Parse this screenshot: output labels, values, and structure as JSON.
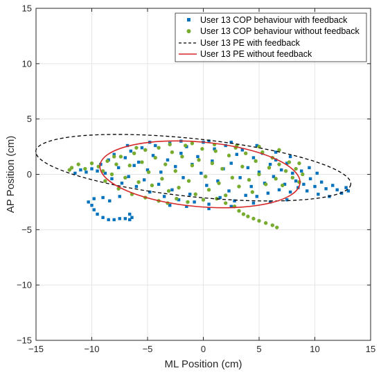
{
  "chart_data": {
    "type": "scatter",
    "title": "",
    "xlabel": "ML Position (cm)",
    "ylabel": "AP Position (cm)",
    "xlim": [
      -15,
      15
    ],
    "ylim": [
      -15,
      15
    ],
    "xticks": [
      -15,
      -10,
      -5,
      0,
      5,
      10,
      15
    ],
    "yticks": [
      -15,
      -10,
      -5,
      0,
      5,
      10,
      15
    ],
    "xtick_labels": [
      "−15",
      "−10",
      "−5",
      "0",
      "5",
      "10",
      "15"
    ],
    "ytick_labels": [
      "−15",
      "−10",
      "−5",
      "0",
      "5",
      "10",
      "15"
    ],
    "grid": true,
    "legend_position": "top-right",
    "series": [
      {
        "name": "User 13 COP behaviour with feedback",
        "kind": "scatter",
        "marker": "square",
        "color": "#0072BD",
        "points": [
          [
            -10.5,
            0.2
          ],
          [
            -10.0,
            0.5
          ],
          [
            -9.5,
            0.3
          ],
          [
            -9.2,
            0.9
          ],
          [
            -8.8,
            0.1
          ],
          [
            -8.5,
            1.3
          ],
          [
            -8.2,
            -0.4
          ],
          [
            -8.0,
            1.8
          ],
          [
            -7.6,
            0.6
          ],
          [
            -7.3,
            -0.8
          ],
          [
            -7.0,
            1.5
          ],
          [
            -6.7,
            -0.2
          ],
          [
            -6.5,
            2.1
          ],
          [
            -6.2,
            0.8
          ],
          [
            -6.0,
            -1.1
          ],
          [
            -5.8,
            1.1
          ],
          [
            -5.5,
            2.4
          ],
          [
            -5.3,
            -0.5
          ],
          [
            -5.0,
            0.4
          ],
          [
            -4.8,
            -1.6
          ],
          [
            -4.5,
            1.7
          ],
          [
            -4.3,
            2.6
          ],
          [
            -4.0,
            -0.9
          ],
          [
            -3.8,
            0.2
          ],
          [
            -3.5,
            -2.0
          ],
          [
            -3.2,
            1.3
          ],
          [
            -3.0,
            2.8
          ],
          [
            -2.8,
            -1.4
          ],
          [
            -2.5,
            0.7
          ],
          [
            -2.2,
            -2.3
          ],
          [
            -2.0,
            1.9
          ],
          [
            -1.8,
            -0.3
          ],
          [
            -1.5,
            2.5
          ],
          [
            -1.2,
            -1.8
          ],
          [
            -1.0,
            0.9
          ],
          [
            -0.8,
            -2.5
          ],
          [
            -0.5,
            1.6
          ],
          [
            -0.2,
            0.1
          ],
          [
            0.0,
            2.9
          ],
          [
            0.3,
            -1.0
          ],
          [
            0.5,
            -2.7
          ],
          [
            0.8,
            1.2
          ],
          [
            1.0,
            2.3
          ],
          [
            1.3,
            -0.6
          ],
          [
            1.5,
            -2.1
          ],
          [
            1.8,
            0.5
          ],
          [
            2.0,
            2.6
          ],
          [
            2.3,
            -1.5
          ],
          [
            2.5,
            1.0
          ],
          [
            2.8,
            -2.4
          ],
          [
            3.0,
            1.8
          ],
          [
            3.3,
            -0.3
          ],
          [
            3.5,
            2.2
          ],
          [
            3.8,
            -1.9
          ],
          [
            4.0,
            0.6
          ],
          [
            4.3,
            -1.1
          ],
          [
            4.5,
            1.5
          ],
          [
            4.8,
            -2.0
          ],
          [
            5.0,
            0.2
          ],
          [
            5.3,
            1.9
          ],
          [
            5.5,
            -0.8
          ],
          [
            5.8,
            -1.7
          ],
          [
            6.0,
            0.9
          ],
          [
            6.3,
            -0.2
          ],
          [
            6.5,
            1.3
          ],
          [
            6.8,
            -1.4
          ],
          [
            7.0,
            0.4
          ],
          [
            7.3,
            -0.9
          ],
          [
            7.5,
            1.0
          ],
          [
            7.8,
            -1.6
          ],
          [
            8.0,
            0.1
          ],
          [
            8.3,
            -0.6
          ],
          [
            8.5,
            -1.2
          ],
          [
            8.8,
            0.3
          ],
          [
            9.0,
            -0.9
          ],
          [
            9.3,
            -1.5
          ],
          [
            9.6,
            -0.4
          ],
          [
            10.0,
            -1.1
          ],
          [
            10.3,
            -1.8
          ],
          [
            10.6,
            -0.7
          ],
          [
            11.0,
            -1.3
          ],
          [
            11.3,
            -2.0
          ],
          [
            11.6,
            -1.0
          ],
          [
            12.0,
            -1.4
          ],
          [
            12.4,
            -1.7
          ],
          [
            12.8,
            -1.2
          ],
          [
            13.0,
            -1.5
          ],
          [
            -10.0,
            -2.8
          ],
          [
            -9.8,
            -3.2
          ],
          [
            -9.5,
            -3.6
          ],
          [
            -9.0,
            -3.9
          ],
          [
            -8.5,
            -4.1
          ],
          [
            -8.0,
            -4.1
          ],
          [
            -7.5,
            -4.0
          ],
          [
            -7.0,
            -4.0
          ],
          [
            -6.6,
            -4.1
          ],
          [
            -6.4,
            -3.9
          ],
          [
            -6.6,
            -3.6
          ],
          [
            -10.3,
            -2.5
          ],
          [
            -9.8,
            -2.2
          ],
          [
            -9.0,
            -2.1
          ],
          [
            -8.4,
            -2.4
          ],
          [
            -7.5,
            -2.0
          ],
          [
            -3.0,
            -2.8
          ],
          [
            -1.5,
            -2.9
          ],
          [
            0.5,
            -3.1
          ],
          [
            2.5,
            -2.9
          ],
          [
            4.5,
            -2.6
          ],
          [
            6.0,
            -2.5
          ],
          [
            7.5,
            -2.3
          ],
          [
            -2.0,
            3.0
          ],
          [
            0.5,
            3.0
          ],
          [
            2.5,
            2.9
          ],
          [
            4.8,
            2.6
          ],
          [
            6.5,
            2.0
          ],
          [
            7.8,
            1.6
          ],
          [
            -4.8,
            2.9
          ],
          [
            -11.0,
            0.4
          ],
          [
            -11.5,
            0.1
          ],
          [
            -6.8,
            2.6
          ],
          [
            10.2,
            0.1
          ],
          [
            9.5,
            0.6
          ]
        ]
      },
      {
        "name": "User 13 COP behaviour without feedback",
        "kind": "scatter",
        "marker": "circle",
        "color": "#77AC30",
        "points": [
          [
            -11.8,
            0.6
          ],
          [
            -11.2,
            0.9
          ],
          [
            -10.6,
            0.5
          ],
          [
            -10.0,
            1.0
          ],
          [
            -9.4,
            0.7
          ],
          [
            -9.0,
            0.3
          ],
          [
            -8.6,
            1.2
          ],
          [
            -8.2,
            0.0
          ],
          [
            -7.8,
            0.9
          ],
          [
            -7.4,
            1.6
          ],
          [
            -7.0,
            -0.3
          ],
          [
            -6.6,
            0.8
          ],
          [
            -6.2,
            1.9
          ],
          [
            -5.8,
            -0.7
          ],
          [
            -5.5,
            1.1
          ],
          [
            -5.2,
            2.2
          ],
          [
            -4.9,
            0.2
          ],
          [
            -4.6,
            -1.0
          ],
          [
            -4.3,
            1.5
          ],
          [
            -4.0,
            2.4
          ],
          [
            -3.7,
            -0.4
          ],
          [
            -3.4,
            0.9
          ],
          [
            -3.1,
            -1.5
          ],
          [
            -2.8,
            2.0
          ],
          [
            -2.5,
            0.3
          ],
          [
            -2.2,
            -1.2
          ],
          [
            -1.9,
            1.6
          ],
          [
            -1.6,
            2.6
          ],
          [
            -1.3,
            -0.6
          ],
          [
            -1.0,
            0.8
          ],
          [
            -0.7,
            -1.8
          ],
          [
            -0.4,
            1.3
          ],
          [
            -0.1,
            2.3
          ],
          [
            0.2,
            -0.2
          ],
          [
            0.5,
            -1.4
          ],
          [
            0.8,
            1.0
          ],
          [
            1.1,
            2.1
          ],
          [
            1.4,
            -0.8
          ],
          [
            1.7,
            0.5
          ],
          [
            2.0,
            -1.9
          ],
          [
            2.3,
            1.7
          ],
          [
            2.6,
            -0.3
          ],
          [
            2.9,
            2.4
          ],
          [
            3.2,
            -1.1
          ],
          [
            3.5,
            0.7
          ],
          [
            3.8,
            1.9
          ],
          [
            4.1,
            -0.5
          ],
          [
            4.4,
            -1.6
          ],
          [
            4.7,
            1.2
          ],
          [
            5.0,
            0.0
          ],
          [
            5.3,
            2.0
          ],
          [
            5.6,
            -0.9
          ],
          [
            5.9,
            0.6
          ],
          [
            6.2,
            1.5
          ],
          [
            6.5,
            -0.4
          ],
          [
            6.8,
            0.9
          ],
          [
            7.1,
            -1.0
          ],
          [
            7.4,
            0.3
          ],
          [
            7.7,
            1.1
          ],
          [
            8.0,
            -0.3
          ],
          [
            8.3,
            0.5
          ],
          [
            8.6,
            -0.7
          ],
          [
            8.9,
            0.0
          ],
          [
            -8.8,
            -0.6
          ],
          [
            -7.6,
            -1.3
          ],
          [
            -6.4,
            -1.8
          ],
          [
            -5.2,
            -2.1
          ],
          [
            -4.0,
            -2.4
          ],
          [
            -3.2,
            -2.6
          ],
          [
            -2.4,
            -2.2
          ],
          [
            -1.4,
            -2.5
          ],
          [
            0.0,
            -2.3
          ],
          [
            1.2,
            -2.2
          ],
          [
            2.0,
            -2.6
          ],
          [
            2.8,
            -2.9
          ],
          [
            3.2,
            -3.3
          ],
          [
            3.6,
            -3.6
          ],
          [
            4.0,
            -3.8
          ],
          [
            4.5,
            -4.0
          ],
          [
            5.0,
            -4.2
          ],
          [
            5.6,
            -4.4
          ],
          [
            6.2,
            -4.6
          ],
          [
            6.6,
            -4.8
          ],
          [
            -3.0,
            2.7
          ],
          [
            -1.0,
            2.8
          ],
          [
            1.0,
            2.7
          ],
          [
            3.0,
            2.6
          ],
          [
            5.0,
            2.5
          ],
          [
            6.8,
            2.2
          ],
          [
            -6.0,
            2.4
          ],
          [
            -8.0,
            1.6
          ],
          [
            8.6,
            1.0
          ],
          [
            -12.0,
            0.4
          ]
        ]
      },
      {
        "name": "User 13 PE with feedback",
        "kind": "ellipse",
        "line": "dashed",
        "color": "#000000",
        "center": [
          -0.9,
          0.6
        ],
        "semi_axes": [
          14.2,
          2.6
        ],
        "angle_deg": -6
      },
      {
        "name": "User 13 PE without feedback",
        "kind": "ellipse",
        "line": "solid",
        "color": "#D62728",
        "center": [
          -0.3,
          0.0
        ],
        "semi_axes": [
          9.0,
          2.9
        ],
        "angle_deg": -5
      }
    ]
  }
}
